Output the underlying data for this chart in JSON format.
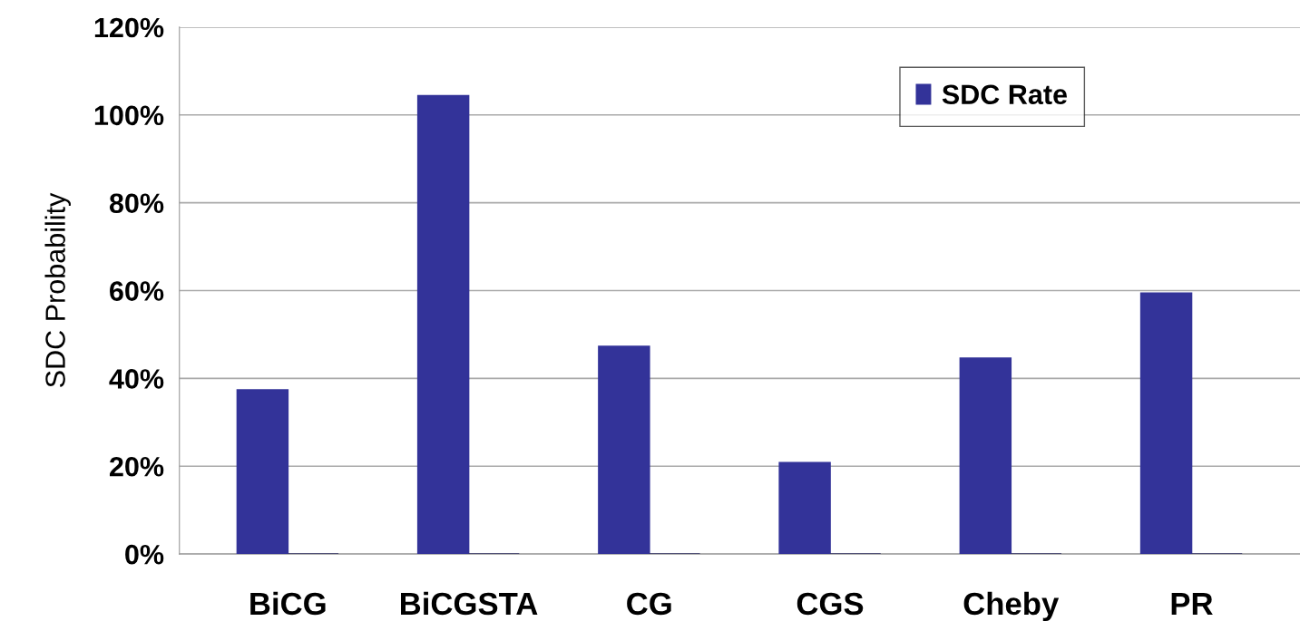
{
  "chart_data": {
    "type": "bar",
    "ylabel": "SDC Probability",
    "categories": [
      "BiCG",
      "BiCGSTA",
      "CG",
      "CGS",
      "Cheby",
      "PR"
    ],
    "series": [
      {
        "name": "SDC Rate",
        "color": "#333399",
        "values": [
          37.4,
          104.4,
          47.3,
          20.8,
          44.6,
          59.4
        ]
      },
      {
        "color": "#333366",
        "values": [
          0,
          0,
          0,
          0,
          0,
          0
        ]
      }
    ],
    "ylim": [
      0,
      120
    ],
    "yticks": [
      {
        "value": 0,
        "label": "0%"
      },
      {
        "value": 20,
        "label": "20%"
      },
      {
        "value": 40,
        "label": "40%"
      },
      {
        "value": 60,
        "label": "60%"
      },
      {
        "value": 80,
        "label": "80%"
      },
      {
        "value": 100,
        "label": "100%"
      },
      {
        "value": 120,
        "label": "120%"
      }
    ],
    "grid": "y",
    "legend": "top right"
  }
}
